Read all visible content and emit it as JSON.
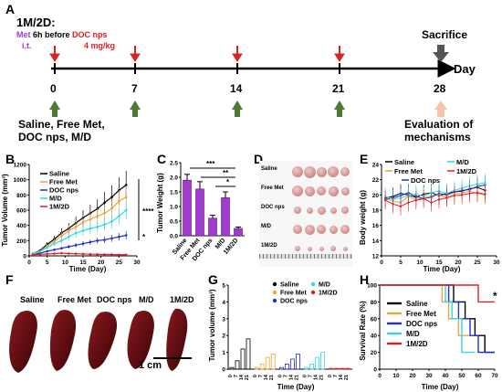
{
  "panel_letters": {
    "a": "A",
    "b": "B",
    "c": "C",
    "d": "D",
    "e": "E",
    "f": "F",
    "g": "G",
    "h": "H"
  },
  "colors": {
    "black": "#000000",
    "orange": "#f0a23c",
    "blue": "#1f2fd0",
    "cyan": "#33d6e6",
    "red": "#e02020",
    "purple": "#a33bd0",
    "green": "#4a7a36",
    "gray": "#555555",
    "peach": "#f7c4a8",
    "liver": "#6a1014"
  },
  "schedule": {
    "group_label": "1M/2D:",
    "met_word": "Met",
    "met_timing": "6h before",
    "doc_label": "DOC nps",
    "route": "i.t.",
    "dose": "4 mg/kg",
    "days": [
      "0",
      "7",
      "14",
      "21",
      "28"
    ],
    "axis_unit": "Day",
    "sacrifice": "Sacrifice",
    "treatments": [
      "Saline, Free Met,",
      "DOC nps, M/D"
    ],
    "evaluation": [
      "Evaluation of",
      "mechanisms"
    ]
  },
  "series_names": [
    "Saline",
    "Free Met",
    "DOC nps",
    "M/D",
    "1M/2D"
  ],
  "panel_b": {
    "ylabel": "Tumor Volume (mm³)",
    "xlabel": "Time (Day)",
    "yticks": [
      "0",
      "200",
      "400",
      "600",
      "800",
      "1000",
      "1200"
    ],
    "xticks": [
      "0",
      "5",
      "10",
      "15",
      "20",
      "25",
      "30"
    ],
    "sig": [
      "****",
      "*"
    ]
  },
  "panel_c": {
    "ylabel": "Tumor Weight (g)",
    "yticks": [
      "0.0",
      "0.5",
      "1.0",
      "1.5",
      "2.0",
      "2.5"
    ],
    "categories": [
      "Saline",
      "Free Met",
      "DOC nps",
      "M/D",
      "1M/2D"
    ],
    "sig": [
      "***",
      "**",
      "*"
    ]
  },
  "panel_d": {
    "rows": [
      "Saline",
      "Free Met",
      "DOC nps",
      "M/D",
      "1M/2D"
    ]
  },
  "panel_e": {
    "ylabel": "Body weight (g)",
    "xlabel": "Time (Day)",
    "yticks": [
      "12",
      "14",
      "16",
      "18",
      "20",
      "22",
      "24"
    ],
    "xticks": [
      "0",
      "5",
      "10",
      "15",
      "20",
      "25",
      "30"
    ]
  },
  "panel_f": {
    "labels": [
      "Saline",
      "Free Met",
      "DOC nps",
      "M/D",
      "1M/2D"
    ],
    "scale": "1 cm"
  },
  "panel_g": {
    "ylabel": "Tumor volume (mm³)",
    "xlabel": "Time (Day)",
    "yticks": [
      "0",
      "1",
      "2",
      "3",
      "4",
      "5"
    ],
    "group_ticks": [
      "0",
      "7",
      "14",
      "21"
    ]
  },
  "panel_h": {
    "ylabel": "Survival Rate (%)",
    "xlabel": "Time (Day)",
    "yticks": [
      "0",
      "20",
      "40",
      "60",
      "80",
      "100"
    ],
    "xticks": [
      "0",
      "10",
      "20",
      "30",
      "40",
      "50",
      "60",
      "70"
    ],
    "sig": "*"
  },
  "chart_data": [
    {
      "type": "line",
      "title": "",
      "xlabel": "Time (Day)",
      "ylabel": "Tumor Volume (mm³)",
      "xlim": [
        0,
        30
      ],
      "ylim": [
        0,
        1200
      ],
      "x": [
        1,
        3,
        5,
        7,
        9,
        11,
        13,
        15,
        17,
        19,
        21,
        23,
        25,
        27
      ],
      "series": [
        {
          "name": "Saline",
          "values": [
            30,
            70,
            150,
            220,
            300,
            360,
            430,
            500,
            560,
            620,
            700,
            770,
            860,
            930
          ]
        },
        {
          "name": "Free Met",
          "values": [
            30,
            60,
            130,
            190,
            260,
            330,
            380,
            440,
            480,
            520,
            560,
            620,
            720,
            770
          ]
        },
        {
          "name": "DOC nps",
          "values": [
            20,
            35,
            60,
            80,
            100,
            120,
            140,
            160,
            180,
            200,
            210,
            230,
            250,
            270
          ]
        },
        {
          "name": "M/D",
          "values": [
            25,
            55,
            110,
            160,
            200,
            250,
            300,
            330,
            360,
            380,
            410,
            450,
            520,
            600
          ]
        },
        {
          "name": "1M/2D",
          "values": [
            15,
            20,
            25,
            30,
            35,
            30,
            28,
            25,
            22,
            20,
            18,
            18,
            15,
            15
          ]
        }
      ]
    },
    {
      "type": "bar",
      "ylabel": "Tumor Weight (g)",
      "ylim": [
        0,
        2.5
      ],
      "categories": [
        "Saline",
        "Free Met",
        "DOC nps",
        "M/D",
        "1M/2D"
      ],
      "values": [
        1.9,
        1.6,
        0.6,
        1.3,
        0.25
      ],
      "errors": [
        0.2,
        0.25,
        0.1,
        0.2,
        0.05
      ]
    },
    {
      "type": "line",
      "xlabel": "Time (Day)",
      "ylabel": "Body weight (g)",
      "xlim": [
        0,
        30
      ],
      "ylim": [
        12,
        24
      ],
      "x": [
        1,
        3,
        5,
        7,
        9,
        11,
        13,
        15,
        17,
        19,
        21,
        23,
        25,
        27
      ],
      "series": [
        {
          "name": "Saline",
          "values": [
            19.6,
            19.8,
            20.2,
            20.0,
            19.7,
            20.1,
            20.3,
            19.9,
            20.2,
            20.4,
            20.5,
            20.8,
            21.0,
            20.6
          ]
        },
        {
          "name": "Free Met",
          "values": [
            19.5,
            19.2,
            19.0,
            19.8,
            19.4,
            19.6,
            19.9,
            20.0,
            19.7,
            20.1,
            20.3,
            20.5,
            20.2,
            20.0
          ]
        },
        {
          "name": "DOC nps",
          "values": [
            19.4,
            19.6,
            19.9,
            20.3,
            19.8,
            19.5,
            19.7,
            20.2,
            20.0,
            20.4,
            20.6,
            20.7,
            21.1,
            21.3
          ]
        },
        {
          "name": "M/D",
          "values": [
            19.8,
            19.4,
            19.6,
            19.9,
            20.1,
            19.8,
            20.3,
            20.5,
            20.2,
            20.6,
            20.9,
            21.2,
            21.4,
            21.6
          ]
        },
        {
          "name": "1M/2D",
          "values": [
            19.3,
            18.8,
            18.5,
            19.0,
            19.3,
            19.5,
            19.0,
            19.4,
            19.6,
            19.9,
            20.0,
            20.2,
            20.3,
            20.1
          ]
        }
      ]
    },
    {
      "type": "bar",
      "ylabel": "Tumor volume (mm³)",
      "xlabel": "Time (Day)",
      "ylim": [
        0,
        5
      ],
      "categories": [
        "0",
        "7",
        "14",
        "21"
      ],
      "series": [
        {
          "name": "Saline",
          "values": [
            0.1,
            0.5,
            1.2,
            1.8
          ]
        },
        {
          "name": "Free Met",
          "values": [
            0.1,
            0.3,
            0.7,
            0.9
          ]
        },
        {
          "name": "DOC nps",
          "values": [
            0.1,
            0.3,
            0.6,
            0.9
          ]
        },
        {
          "name": "M/D",
          "values": [
            0.1,
            0.3,
            0.7,
            1.0
          ]
        },
        {
          "name": "1M/2D",
          "values": [
            0.05,
            0.05,
            0.05,
            0.05
          ]
        }
      ]
    },
    {
      "type": "line",
      "xlabel": "Time (Day)",
      "ylabel": "Survival Rate (%)",
      "xlim": [
        0,
        70
      ],
      "ylim": [
        0,
        100
      ],
      "series": [
        {
          "name": "Saline",
          "x": [
            0,
            45,
            45,
            52,
            52,
            58,
            58,
            64,
            64,
            70
          ],
          "values": [
            100,
            100,
            80,
            80,
            60,
            60,
            40,
            40,
            20,
            20
          ]
        },
        {
          "name": "Free Met",
          "x": [
            0,
            38,
            38,
            42,
            42,
            48,
            48,
            55
          ],
          "values": [
            100,
            100,
            80,
            80,
            60,
            60,
            40,
            40
          ]
        },
        {
          "name": "DOC nps",
          "x": [
            0,
            42,
            42,
            48,
            48,
            55,
            55,
            60,
            60,
            70
          ],
          "values": [
            100,
            100,
            80,
            80,
            60,
            60,
            40,
            40,
            20,
            20
          ]
        },
        {
          "name": "M/D",
          "x": [
            0,
            40,
            40,
            44,
            44,
            50,
            50,
            58
          ],
          "values": [
            100,
            100,
            80,
            80,
            60,
            60,
            20,
            20
          ]
        },
        {
          "name": "1M/2D",
          "x": [
            0,
            60,
            60,
            70
          ],
          "values": [
            100,
            100,
            80,
            80
          ]
        }
      ]
    }
  ]
}
